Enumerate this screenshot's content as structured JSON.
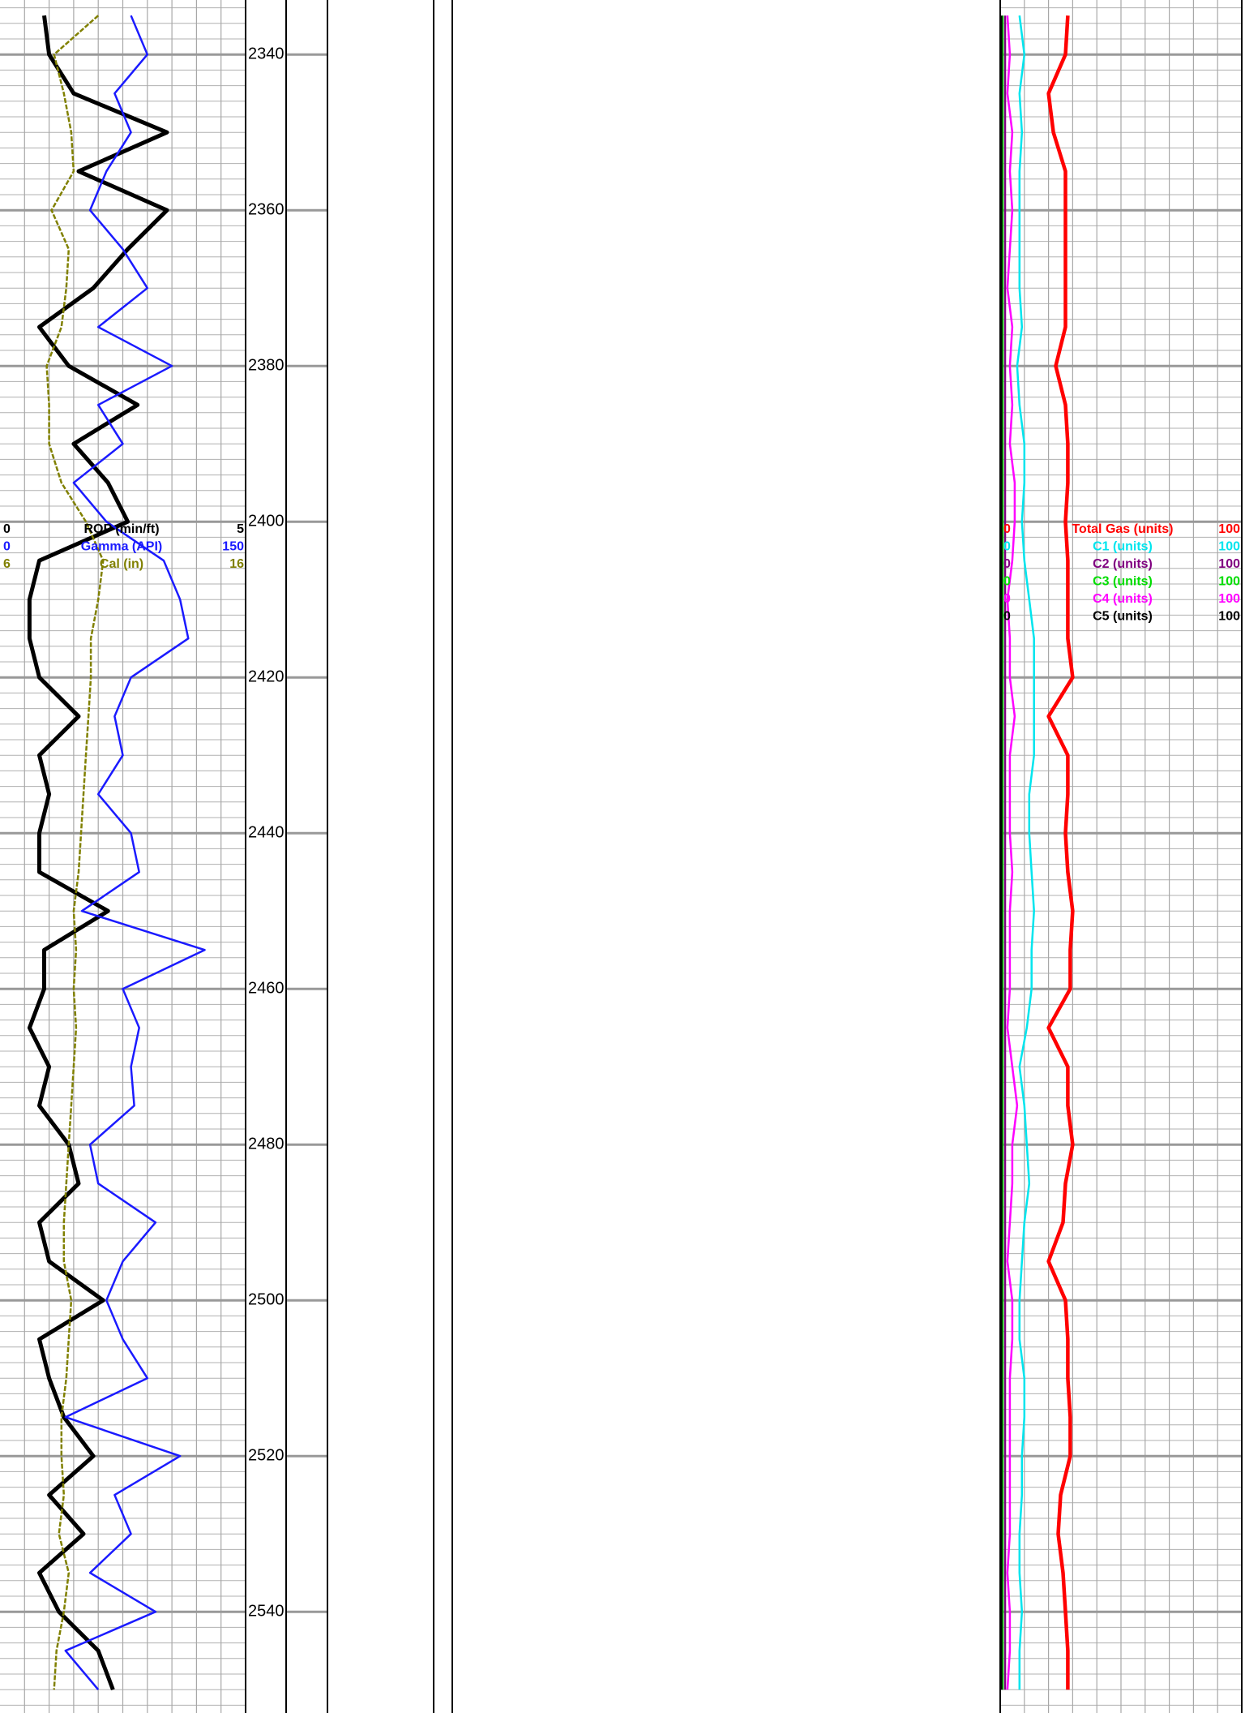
{
  "chart_data": {
    "type": "line",
    "x": [
      2335,
      2340,
      2345,
      2350,
      2355,
      2360,
      2365,
      2370,
      2375,
      2380,
      2385,
      2390,
      2395,
      2400,
      2405,
      2410,
      2415,
      2420,
      2425,
      2430,
      2435,
      2440,
      2445,
      2450,
      2455,
      2460,
      2465,
      2470,
      2475,
      2480,
      2485,
      2490,
      2495,
      2500,
      2505,
      2510,
      2515,
      2520,
      2525,
      2530,
      2535,
      2540,
      2545,
      2550
    ],
    "xlim": [
      2333,
      2553
    ],
    "xticks": [
      2340,
      2360,
      2380,
      2400,
      2420,
      2440,
      2460,
      2480,
      2500,
      2520,
      2540
    ],
    "series": [
      {
        "name": "ROP (min/ft)",
        "color": "#000000",
        "track": 1,
        "ylim": [
          0,
          5
        ],
        "values": [
          0.9,
          1.0,
          1.5,
          3.4,
          1.6,
          3.4,
          2.6,
          1.9,
          0.8,
          1.4,
          2.8,
          1.5,
          2.2,
          2.6,
          0.8,
          0.6,
          0.6,
          0.8,
          1.6,
          0.8,
          1.0,
          0.8,
          0.8,
          2.2,
          0.9,
          0.9,
          0.6,
          1.0,
          0.8,
          1.4,
          1.6,
          0.8,
          1.0,
          2.1,
          0.8,
          1.0,
          1.3,
          1.9,
          1.0,
          1.7,
          0.8,
          1.2,
          2.0,
          2.3
        ]
      },
      {
        "name": "Gamma (API)",
        "color": "#1a1aff",
        "track": 1,
        "ylim": [
          0,
          150
        ],
        "values": [
          80,
          90,
          70,
          80,
          65,
          55,
          75,
          90,
          60,
          105,
          60,
          75,
          45,
          65,
          100,
          110,
          115,
          80,
          70,
          75,
          60,
          80,
          85,
          50,
          125,
          75,
          85,
          80,
          82,
          55,
          60,
          95,
          75,
          65,
          75,
          90,
          40,
          110,
          70,
          80,
          55,
          95,
          40,
          60
        ]
      },
      {
        "name": "Cal (in)",
        "color": "#808000",
        "track": 1,
        "ylim": [
          6,
          16
        ],
        "values": [
          10.0,
          8.2,
          8.6,
          8.9,
          9.0,
          8.1,
          8.8,
          8.7,
          8.5,
          7.9,
          8.0,
          8.0,
          8.5,
          9.5,
          10.2,
          10.0,
          9.7,
          9.7,
          9.6,
          9.5,
          9.4,
          9.3,
          9.2,
          9.0,
          9.1,
          9.0,
          9.1,
          9.0,
          8.9,
          8.8,
          8.7,
          8.6,
          8.6,
          8.9,
          8.8,
          8.7,
          8.5,
          8.5,
          8.6,
          8.4,
          8.8,
          8.6,
          8.3,
          8.2
        ]
      },
      {
        "name": "Total Gas (units)",
        "color": "#ff0000",
        "track": 2,
        "ylim": [
          0,
          100
        ],
        "values": [
          28,
          27,
          20,
          22,
          27,
          27,
          27,
          27,
          27,
          23,
          27,
          28,
          28,
          27,
          28,
          28,
          28,
          30,
          20,
          28,
          28,
          27,
          28,
          30,
          29,
          29,
          20,
          28,
          28,
          30,
          27,
          26,
          20,
          27,
          28,
          28,
          29,
          29,
          25,
          24,
          26,
          27,
          28,
          28
        ]
      },
      {
        "name": "C1 (units)",
        "color": "#00e5ee",
        "track": 2,
        "ylim": [
          0,
          100
        ],
        "values": [
          8,
          10,
          8,
          9,
          8,
          8,
          8,
          8,
          9,
          7,
          8,
          10,
          10,
          9,
          10,
          12,
          14,
          14,
          14,
          14,
          12,
          12,
          13,
          14,
          13,
          13,
          11,
          8,
          10,
          11,
          12,
          10,
          9,
          8,
          8,
          10,
          10,
          9,
          9,
          8,
          8,
          9,
          8,
          8
        ]
      },
      {
        "name": "C2 (units)",
        "color": "#800080",
        "track": 2,
        "ylim": [
          0,
          100
        ],
        "values": [
          2,
          2,
          2,
          2,
          2,
          2,
          2,
          2,
          2,
          2,
          2,
          2,
          2,
          2,
          2,
          2,
          2,
          2,
          2,
          2,
          2,
          2,
          2,
          2,
          2,
          2,
          2,
          2,
          2,
          2,
          2,
          2,
          2,
          2,
          2,
          2,
          2,
          2,
          2,
          2,
          2,
          2,
          2,
          2
        ]
      },
      {
        "name": "C3 (units)",
        "color": "#00dd00",
        "track": 2,
        "ylim": [
          0,
          100
        ],
        "values": [
          1,
          1,
          1,
          1,
          1,
          1,
          1,
          1,
          1,
          1,
          1,
          1,
          1,
          1,
          1,
          1,
          1,
          1,
          1,
          1,
          1,
          1,
          1,
          1,
          1,
          1,
          1,
          1,
          1,
          1,
          1,
          1,
          1,
          1,
          1,
          1,
          1,
          1,
          1,
          1,
          1,
          1,
          1,
          1
        ]
      },
      {
        "name": "C4 (units)",
        "color": "#ff00ff",
        "track": 2,
        "ylim": [
          0,
          100
        ],
        "values": [
          3,
          4,
          3,
          5,
          4,
          5,
          4,
          3,
          5,
          4,
          5,
          4,
          6,
          6,
          5,
          3,
          4,
          4,
          6,
          4,
          4,
          4,
          5,
          4,
          4,
          4,
          3,
          5,
          7,
          5,
          5,
          4,
          3,
          5,
          5,
          4,
          4,
          4,
          4,
          4,
          3,
          4,
          4,
          3
        ]
      },
      {
        "name": "C5 (units)",
        "color": "#000000",
        "track": 2,
        "ylim": [
          0,
          100
        ],
        "values": [
          0.5,
          0.5,
          0.5,
          0.5,
          0.5,
          0.5,
          0.5,
          0.5,
          0.5,
          0.5,
          0.5,
          0.5,
          0.5,
          0.5,
          0.5,
          0.5,
          0.5,
          0.5,
          0.5,
          0.5,
          0.5,
          0.5,
          0.5,
          0.5,
          0.5,
          0.5,
          0.5,
          0.5,
          0.5,
          0.5,
          0.5,
          0.5,
          0.5,
          0.5,
          0.5,
          0.5,
          0.5,
          0.5,
          0.5,
          0.5,
          0.5,
          0.5,
          0.5,
          0.5
        ]
      }
    ]
  }
}
